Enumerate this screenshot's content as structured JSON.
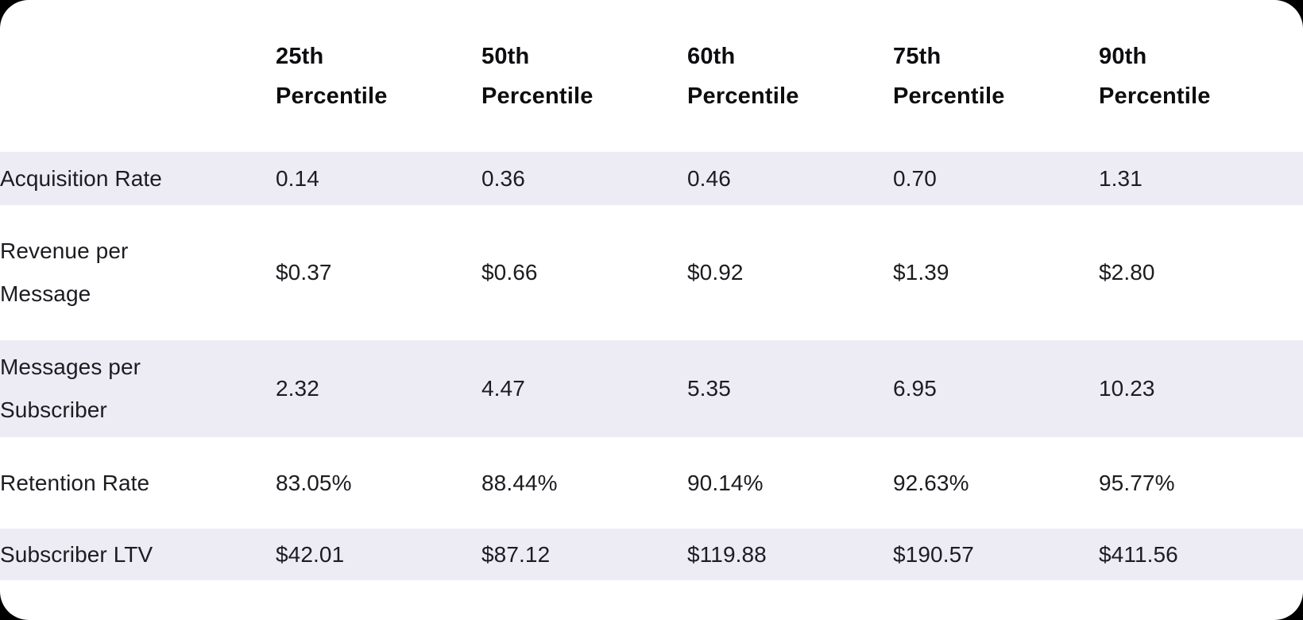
{
  "chart_data": {
    "type": "table",
    "columns": [
      "25th Percentile",
      "50th Percentile",
      "60th Percentile",
      "75th Percentile",
      "90th Percentile"
    ],
    "row_labels": [
      "Acquisition Rate",
      "Revenue per Message",
      "Messages per Subscriber",
      "Retention Rate",
      "Subscriber LTV"
    ],
    "rows": [
      [
        "0.14",
        "0.36",
        "0.46",
        "0.70",
        "1.31"
      ],
      [
        "$0.37",
        "$0.66",
        "$0.92",
        "$1.39",
        "$2.80"
      ],
      [
        "2.32",
        "4.47",
        "5.35",
        "6.95",
        "10.23"
      ],
      [
        "83.05%",
        "88.44%",
        "90.14%",
        "92.63%",
        "95.77%"
      ],
      [
        "$42.01",
        "$87.12",
        "$119.88",
        "$190.57",
        "$411.56"
      ]
    ],
    "striped_row_indices": [
      0,
      2,
      4
    ],
    "layout": {
      "legend": "none",
      "grid": "off",
      "header_position": "top"
    },
    "colors": {
      "page_bg": "#000000",
      "card_bg": "#ffffff",
      "stripe_row_bg": "#edecf4",
      "header_text": "#0d0d10",
      "body_text": "#1c1c21"
    }
  }
}
